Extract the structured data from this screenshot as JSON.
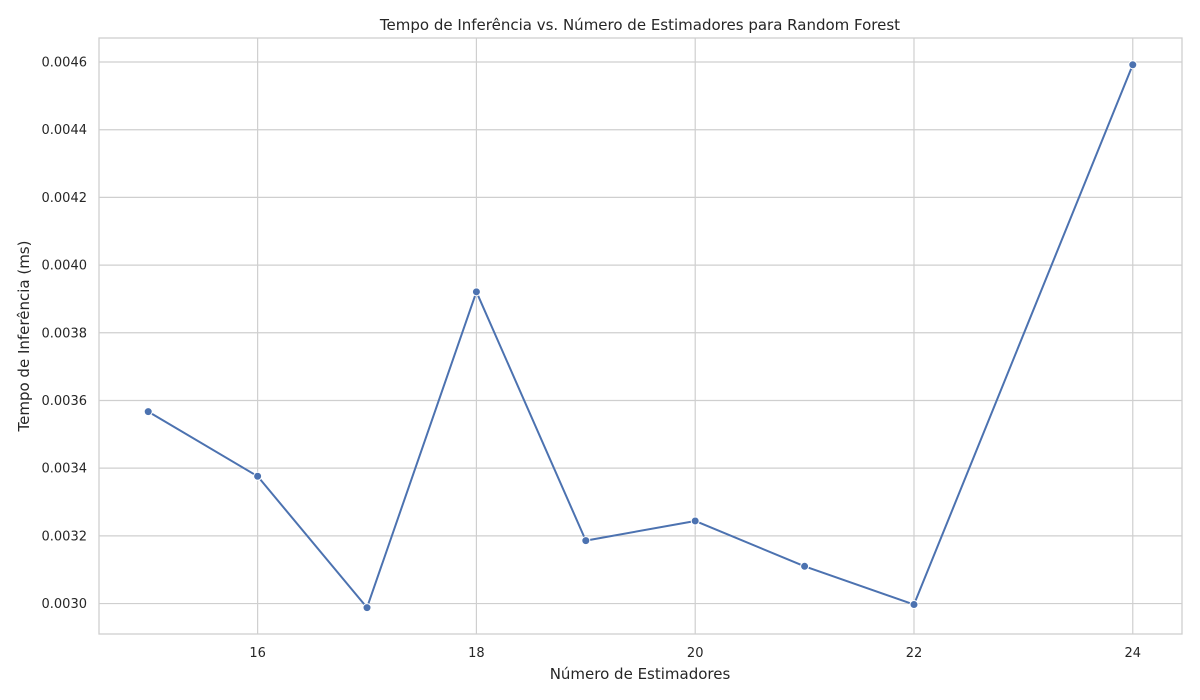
{
  "chart_data": {
    "type": "line",
    "title": "Tempo de Inferência vs. Número de Estimadores para Random Forest",
    "xlabel": "Número de Estimadores",
    "ylabel": "Tempo de Inferência (ms)",
    "x": [
      15,
      16,
      17,
      18,
      19,
      20,
      21,
      22,
      24
    ],
    "series": [
      {
        "values": [
          0.003567,
          0.003376,
          0.002988,
          0.003921,
          0.003186,
          0.003244,
          0.00311,
          0.002997,
          0.004592
        ]
      }
    ],
    "xlim": [
      14.55,
      24.45
    ],
    "ylim": [
      0.00291,
      0.004671
    ],
    "xticks": [
      16,
      18,
      20,
      22,
      24
    ],
    "xtick_labels": [
      "16",
      "18",
      "20",
      "22",
      "24"
    ],
    "yticks": [
      0.003,
      0.0032,
      0.0034,
      0.0036,
      0.0038,
      0.004,
      0.0042,
      0.0044,
      0.0046
    ],
    "ytick_labels": [
      "0.0030",
      "0.0032",
      "0.0034",
      "0.0036",
      "0.0038",
      "0.0040",
      "0.0042",
      "0.0044",
      "0.0046"
    ],
    "grid": true,
    "marker": "circle",
    "colors": {
      "line": "#4c72b0",
      "grid": "#cfcfcf",
      "text": "#262626"
    }
  }
}
